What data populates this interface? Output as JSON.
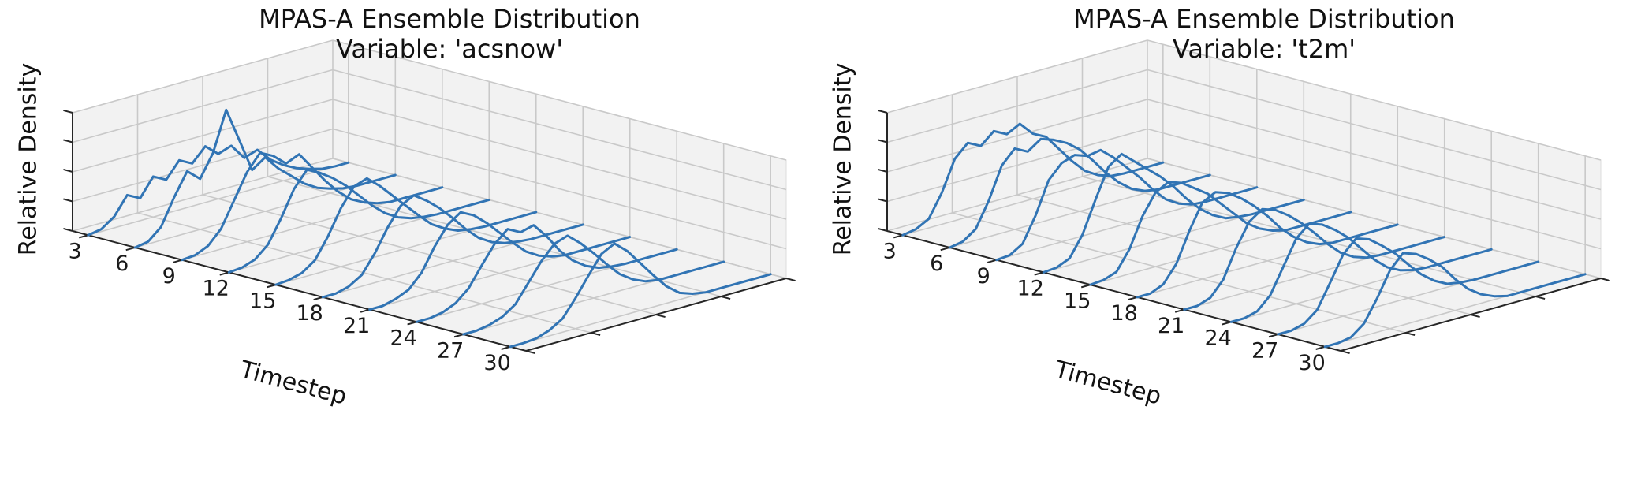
{
  "style": {
    "background": "#ffffff",
    "curve_color": "#3174b4",
    "pane_color": "#f2f2f2",
    "pane_edge_color": "#dcdcdc",
    "grid_color": "#c9c9c9",
    "axis_color": "#262626",
    "text_color": "#1a1a1a"
  },
  "chart_data": [
    {
      "type": "line",
      "subtype": "3d-ridgeline",
      "title": "MPAS-A Ensemble Distribution",
      "subtitle": "Variable: 'acsnow'",
      "xlabel": "Timestep",
      "zlabel": "Relative Density",
      "x": [
        3,
        6,
        9,
        12,
        15,
        18,
        21,
        24,
        27,
        30
      ],
      "x_tick_labels": [
        "3",
        "6",
        "9",
        "12",
        "15",
        "18",
        "21",
        "24",
        "27",
        "30"
      ],
      "grid": true,
      "legend": "none",
      "depth_axis": {
        "ticks": 5,
        "labels_shown": false
      },
      "density_axis": {
        "ticks": 5,
        "labels_shown": false,
        "scale": "normalized 0-1 (estimated)"
      },
      "series": [
        {
          "timestep": 3,
          "density": [
            0,
            0.02,
            0.1,
            0.26,
            0.2,
            0.36,
            0.3,
            0.44,
            0.38,
            0.5,
            0.4,
            0.44,
            0.3,
            0.34,
            0.22,
            0.14,
            0.08,
            0.04,
            0.01,
            0,
            0
          ]
        },
        {
          "timestep": 6,
          "density": [
            0,
            0.02,
            0.12,
            0.35,
            0.55,
            0.45,
            0.65,
            1.0,
            0.7,
            0.4,
            0.48,
            0.35,
            0.25,
            0.15,
            0.08,
            0.04,
            0.01,
            0,
            0,
            0,
            0
          ]
        },
        {
          "timestep": 9,
          "density": [
            0,
            0.01,
            0.06,
            0.18,
            0.4,
            0.62,
            0.76,
            0.7,
            0.6,
            0.65,
            0.5,
            0.35,
            0.22,
            0.12,
            0.06,
            0.02,
            0,
            0,
            0,
            0,
            0
          ]
        },
        {
          "timestep": 12,
          "density": [
            0,
            0.01,
            0.05,
            0.15,
            0.35,
            0.58,
            0.72,
            0.66,
            0.58,
            0.48,
            0.36,
            0.24,
            0.14,
            0.07,
            0.03,
            0.01,
            0,
            0,
            0,
            0,
            0
          ]
        },
        {
          "timestep": 15,
          "density": [
            0,
            0.01,
            0.04,
            0.12,
            0.3,
            0.52,
            0.68,
            0.72,
            0.62,
            0.5,
            0.38,
            0.26,
            0.15,
            0.08,
            0.03,
            0.01,
            0,
            0,
            0,
            0,
            0
          ]
        },
        {
          "timestep": 18,
          "density": [
            0,
            0,
            0.03,
            0.1,
            0.26,
            0.46,
            0.62,
            0.68,
            0.6,
            0.5,
            0.38,
            0.25,
            0.14,
            0.07,
            0.03,
            0.01,
            0,
            0,
            0,
            0,
            0
          ]
        },
        {
          "timestep": 21,
          "density": [
            0,
            0,
            0.03,
            0.08,
            0.2,
            0.4,
            0.56,
            0.64,
            0.58,
            0.48,
            0.36,
            0.24,
            0.13,
            0.06,
            0.02,
            0,
            0,
            0,
            0,
            0,
            0
          ]
        },
        {
          "timestep": 24,
          "density": [
            0,
            0,
            0.02,
            0.07,
            0.17,
            0.34,
            0.5,
            0.6,
            0.54,
            0.57,
            0.44,
            0.28,
            0.16,
            0.08,
            0.03,
            0.01,
            0,
            0,
            0,
            0,
            0
          ]
        },
        {
          "timestep": 27,
          "density": [
            0,
            0,
            0.02,
            0.06,
            0.14,
            0.3,
            0.46,
            0.58,
            0.62,
            0.52,
            0.4,
            0.27,
            0.15,
            0.07,
            0.02,
            0,
            0,
            0,
            0,
            0,
            0
          ]
        },
        {
          "timestep": 30,
          "density": [
            0,
            0,
            0.01,
            0.05,
            0.12,
            0.27,
            0.44,
            0.6,
            0.66,
            0.56,
            0.42,
            0.28,
            0.15,
            0.06,
            0.02,
            0,
            0,
            0,
            0,
            0,
            0
          ]
        }
      ]
    },
    {
      "type": "line",
      "subtype": "3d-ridgeline",
      "title": "MPAS-A Ensemble Distribution",
      "subtitle": "Variable: 't2m'",
      "xlabel": "Timestep",
      "zlabel": "Relative Density",
      "x": [
        3,
        6,
        9,
        12,
        15,
        18,
        21,
        24,
        27,
        30
      ],
      "x_tick_labels": [
        "3",
        "6",
        "9",
        "12",
        "15",
        "18",
        "21",
        "24",
        "27",
        "30"
      ],
      "grid": true,
      "legend": "none",
      "depth_axis": {
        "ticks": 5,
        "labels_shown": false
      },
      "density_axis": {
        "ticks": 5,
        "labels_shown": false,
        "scale": "normalized 0-1 (estimated)"
      },
      "series": [
        {
          "timestep": 3,
          "density": [
            0,
            0.02,
            0.08,
            0.28,
            0.55,
            0.66,
            0.6,
            0.7,
            0.64,
            0.7,
            0.58,
            0.52,
            0.38,
            0.24,
            0.12,
            0.05,
            0.01,
            0,
            0,
            0,
            0
          ]
        },
        {
          "timestep": 6,
          "density": [
            0,
            0.02,
            0.1,
            0.32,
            0.6,
            0.72,
            0.66,
            0.74,
            0.7,
            0.64,
            0.55,
            0.42,
            0.28,
            0.16,
            0.07,
            0.02,
            0,
            0,
            0,
            0,
            0
          ]
        },
        {
          "timestep": 9,
          "density": [
            0,
            0.01,
            0.08,
            0.3,
            0.58,
            0.7,
            0.74,
            0.7,
            0.72,
            0.62,
            0.5,
            0.38,
            0.24,
            0.12,
            0.05,
            0.01,
            0,
            0,
            0,
            0,
            0
          ]
        },
        {
          "timestep": 12,
          "density": [
            0,
            0.01,
            0.06,
            0.24,
            0.52,
            0.78,
            0.86,
            0.76,
            0.66,
            0.56,
            0.44,
            0.3,
            0.18,
            0.09,
            0.03,
            0.01,
            0,
            0,
            0,
            0,
            0
          ]
        },
        {
          "timestep": 15,
          "density": [
            0,
            0.01,
            0.05,
            0.22,
            0.48,
            0.66,
            0.72,
            0.68,
            0.6,
            0.52,
            0.4,
            0.28,
            0.16,
            0.08,
            0.03,
            0,
            0,
            0,
            0,
            0,
            0
          ]
        },
        {
          "timestep": 18,
          "density": [
            0,
            0,
            0.05,
            0.2,
            0.46,
            0.68,
            0.74,
            0.7,
            0.62,
            0.52,
            0.4,
            0.26,
            0.15,
            0.07,
            0.02,
            0,
            0,
            0,
            0,
            0,
            0
          ]
        },
        {
          "timestep": 21,
          "density": [
            0,
            0,
            0.04,
            0.17,
            0.42,
            0.62,
            0.7,
            0.66,
            0.58,
            0.48,
            0.36,
            0.23,
            0.12,
            0.05,
            0.01,
            0,
            0,
            0,
            0,
            0,
            0
          ]
        },
        {
          "timestep": 24,
          "density": [
            0,
            0,
            0.03,
            0.14,
            0.36,
            0.58,
            0.68,
            0.64,
            0.56,
            0.46,
            0.33,
            0.2,
            0.1,
            0.04,
            0.01,
            0,
            0,
            0,
            0,
            0,
            0
          ]
        },
        {
          "timestep": 27,
          "density": [
            0,
            0,
            0.03,
            0.12,
            0.33,
            0.55,
            0.66,
            0.62,
            0.53,
            0.43,
            0.3,
            0.18,
            0.09,
            0.03,
            0.01,
            0,
            0,
            0,
            0,
            0,
            0
          ]
        },
        {
          "timestep": 30,
          "density": [
            0,
            0,
            0.02,
            0.11,
            0.3,
            0.52,
            0.64,
            0.6,
            0.52,
            0.42,
            0.28,
            0.16,
            0.08,
            0.03,
            0,
            0,
            0,
            0,
            0,
            0,
            0
          ]
        }
      ]
    }
  ]
}
